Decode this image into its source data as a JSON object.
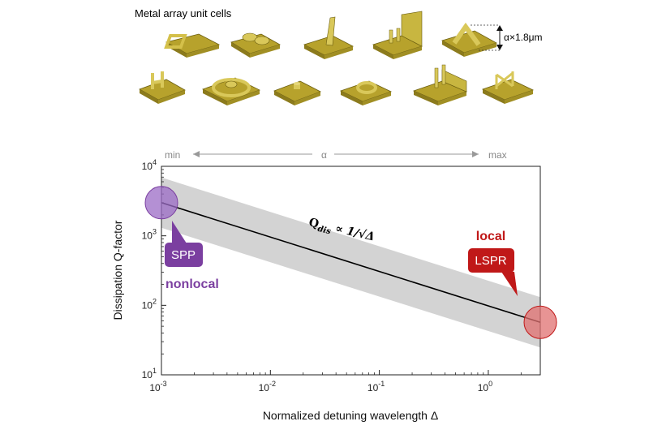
{
  "figure_title": "Metal array unit cells",
  "height_label": "α×1.8μm",
  "scale": {
    "min": "min",
    "param": "α",
    "max": "max"
  },
  "annotations": {
    "spp_box": "SPP",
    "spp_word": "nonlocal",
    "lspr_word": "local",
    "lspr_box": "LSPR",
    "formula_main": "Q",
    "formula_sub": "dis",
    "formula_rest": " ∝ 1/√Δ"
  },
  "colors": {
    "gold": "#c9b439",
    "spp": "#7b3fa0",
    "lspr": "#c01818",
    "band": "#d3d3d3"
  },
  "chart_data": {
    "type": "line",
    "title": "",
    "xlabel": "Normalized detuning wavelength Δ",
    "ylabel": "Dissipation Q-factor",
    "xscale": "log",
    "yscale": "log",
    "xlim": [
      0.001,
      3
    ],
    "ylim": [
      10,
      10000
    ],
    "xticks": [
      {
        "value": 0.001,
        "base": "10",
        "exp": "-3"
      },
      {
        "value": 0.01,
        "base": "10",
        "exp": "-2"
      },
      {
        "value": 0.1,
        "base": "10",
        "exp": "-1"
      },
      {
        "value": 1,
        "base": "10",
        "exp": "0"
      }
    ],
    "yticks": [
      {
        "value": 10,
        "base": "10",
        "exp": "1"
      },
      {
        "value": 100,
        "base": "10",
        "exp": "2"
      },
      {
        "value": 1000,
        "base": "10",
        "exp": "3"
      },
      {
        "value": 10000,
        "base": "10",
        "exp": "4"
      }
    ],
    "series": [
      {
        "x": [
          0.001,
          3
        ],
        "y": [
          3000,
          57
        ]
      }
    ],
    "band_factor": 2.3,
    "markers": [
      {
        "x": 0.001,
        "y": 3000,
        "color": "#9b6bc6"
      },
      {
        "x": 3,
        "y": 57,
        "color": "#e07070"
      }
    ],
    "grid": false
  }
}
